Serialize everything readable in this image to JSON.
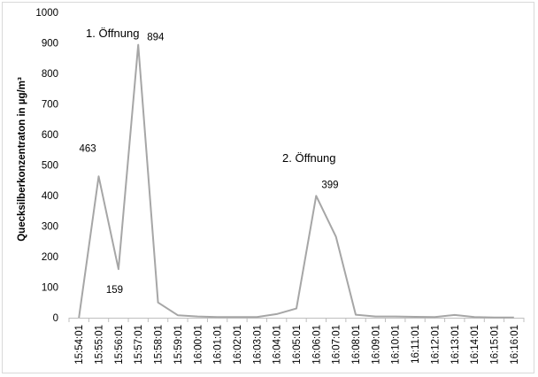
{
  "chart_data": {
    "type": "line",
    "ylabel": "Quecksilberkonzentraton in µg/m³",
    "xlabel": "",
    "ylim": [
      0,
      1000
    ],
    "yticks": [
      "0",
      "100",
      "200",
      "300",
      "400",
      "500",
      "600",
      "700",
      "800",
      "900",
      "1000"
    ],
    "grid": false,
    "legend": "none",
    "line_color": "#a6a6a6",
    "categories": [
      "15:54:01",
      "15:55:01",
      "15:56:01",
      "15:57:01",
      "15:58:01",
      "15:59:01",
      "16:00:01",
      "16:01:01",
      "16:02:01",
      "16:03:01",
      "16:04:01",
      "16:05:01",
      "16:06:01",
      "16:07:01",
      "16:08:01",
      "16:09:01",
      "16:10:01",
      "16:11:01",
      "16:12:01",
      "16:13:01",
      "16:14:01",
      "16:15:01",
      "16:16:01"
    ],
    "values": [
      0,
      463,
      159,
      894,
      50,
      8,
      4,
      2,
      2,
      2,
      12,
      30,
      399,
      265,
      10,
      4,
      4,
      3,
      2,
      9,
      2,
      1,
      1
    ],
    "data_labels": [
      {
        "index": 1,
        "text": "463"
      },
      {
        "index": 2,
        "text": "159"
      },
      {
        "index": 3,
        "text": "894"
      },
      {
        "index": 12,
        "text": "399"
      }
    ],
    "annotations": [
      {
        "text": "1. Öffnung"
      },
      {
        "text": "2. Öffnung"
      }
    ]
  }
}
